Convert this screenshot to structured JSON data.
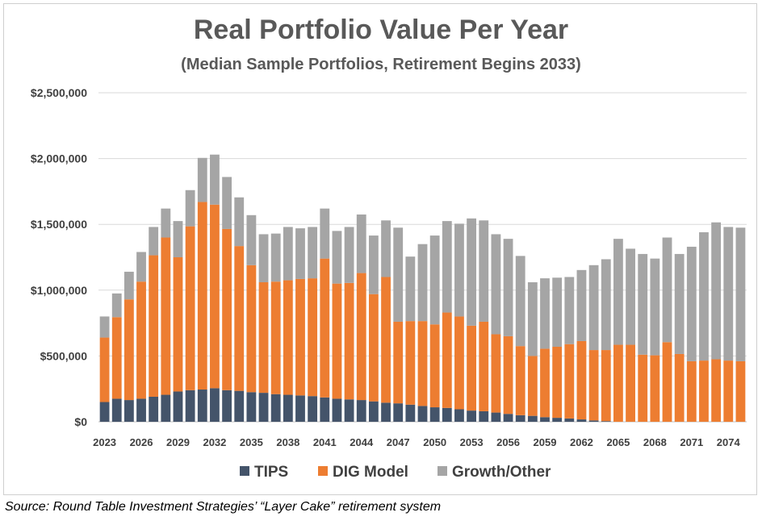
{
  "chart_data": {
    "type": "bar",
    "stacked": true,
    "title": "Real Portfolio Value Per Year",
    "subtitle": "(Median Sample Portfolios, Retirement Begins 2033)",
    "ylim": [
      0,
      2500000
    ],
    "yticks": [
      0,
      500000,
      1000000,
      1500000,
      2000000,
      2500000
    ],
    "ytick_labels": [
      "$0",
      "$500,000",
      "$1,000,000",
      "$1,500,000",
      "$2,000,000",
      "$2,500,000"
    ],
    "grid": true,
    "legend_position": "bottom",
    "categories": [
      2023,
      2024,
      2025,
      2026,
      2027,
      2028,
      2029,
      2030,
      2031,
      2032,
      2033,
      2034,
      2035,
      2036,
      2037,
      2038,
      2039,
      2040,
      2041,
      2042,
      2043,
      2044,
      2045,
      2046,
      2047,
      2048,
      2049,
      2050,
      2051,
      2052,
      2053,
      2054,
      2055,
      2056,
      2057,
      2058,
      2059,
      2060,
      2061,
      2062,
      2063,
      2064,
      2065,
      2066,
      2067,
      2068,
      2069,
      2070,
      2071,
      2072,
      2073,
      2074,
      2075
    ],
    "xtick_labels": [
      "2023",
      "2026",
      "2029",
      "2032",
      "2035",
      "2038",
      "2041",
      "2044",
      "2047",
      "2050",
      "2053",
      "2056",
      "2059",
      "2062",
      "2065",
      "2068",
      "2071",
      "2074"
    ],
    "series": [
      {
        "name": "TIPS",
        "color": "#44546a",
        "values": [
          150000,
          175000,
          165000,
          175000,
          190000,
          205000,
          230000,
          240000,
          245000,
          255000,
          240000,
          235000,
          225000,
          220000,
          210000,
          205000,
          200000,
          195000,
          185000,
          175000,
          170000,
          165000,
          155000,
          145000,
          140000,
          130000,
          120000,
          110000,
          105000,
          95000,
          85000,
          80000,
          70000,
          60000,
          50000,
          45000,
          35000,
          30000,
          25000,
          18000,
          10000,
          5000,
          0,
          0,
          0,
          0,
          0,
          0,
          0,
          0,
          0,
          0,
          0
        ]
      },
      {
        "name": "DIG Model",
        "color": "#ed7d31",
        "values": [
          490000,
          620000,
          765000,
          890000,
          1075000,
          1195000,
          1020000,
          1245000,
          1425000,
          1395000,
          1225000,
          1100000,
          965000,
          840000,
          855000,
          870000,
          885000,
          895000,
          1055000,
          875000,
          885000,
          965000,
          815000,
          955000,
          620000,
          635000,
          645000,
          630000,
          725000,
          705000,
          645000,
          680000,
          595000,
          590000,
          525000,
          455000,
          520000,
          540000,
          565000,
          595000,
          535000,
          540000,
          585000,
          585000,
          510000,
          505000,
          605000,
          515000,
          460000,
          465000,
          475000,
          465000,
          460000
        ]
      },
      {
        "name": "Growth/Other",
        "color": "#a5a5a5",
        "values": [
          160000,
          180000,
          210000,
          225000,
          215000,
          220000,
          275000,
          275000,
          335000,
          380000,
          395000,
          370000,
          380000,
          365000,
          365000,
          405000,
          385000,
          390000,
          380000,
          400000,
          425000,
          445000,
          445000,
          430000,
          715000,
          490000,
          585000,
          675000,
          695000,
          705000,
          815000,
          770000,
          760000,
          740000,
          685000,
          560000,
          535000,
          525000,
          510000,
          540000,
          645000,
          690000,
          805000,
          730000,
          765000,
          735000,
          795000,
          760000,
          870000,
          975000,
          1040000,
          1015000,
          1015000
        ]
      }
    ]
  },
  "source": "Source: Round Table Investment Strategies’ “Layer Cake” retirement system"
}
